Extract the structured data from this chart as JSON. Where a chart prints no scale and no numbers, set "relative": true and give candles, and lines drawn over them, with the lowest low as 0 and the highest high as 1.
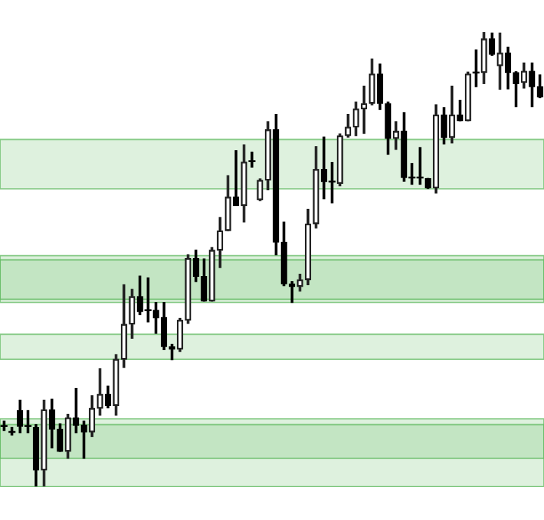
{
  "chart_data": {
    "type": "candlestick",
    "relative": true,
    "categories": [
      null,
      null,
      null,
      null,
      null,
      null,
      null,
      null,
      null,
      null,
      null,
      null,
      null,
      null,
      null,
      null,
      null,
      null,
      null,
      null,
      null,
      null,
      null,
      null,
      null,
      null,
      null,
      null,
      null,
      null,
      null,
      null,
      null,
      null,
      null,
      null,
      null,
      null,
      null,
      null,
      null,
      null,
      null,
      null,
      null,
      null,
      null,
      null,
      null,
      null,
      null,
      null,
      null,
      null,
      null,
      null,
      null,
      null,
      null,
      null,
      null,
      null,
      null,
      null,
      null,
      null,
      null,
      null
    ],
    "ohlc": [
      [
        0.133,
        0.144,
        0.123,
        0.133
      ],
      [
        0.12,
        0.13,
        0.113,
        0.12
      ],
      [
        0.167,
        0.19,
        0.118,
        0.132
      ],
      [
        0.133,
        0.167,
        0.118,
        0.133
      ],
      [
        0.13,
        0.136,
        0,
        0.036
      ],
      [
        0.036,
        0.19,
        0,
        0.169
      ],
      [
        0.169,
        0.192,
        0.085,
        0.126
      ],
      [
        0.126,
        0.138,
        0.077,
        0.077
      ],
      [
        0.077,
        0.159,
        0.062,
        0.151
      ],
      [
        0.151,
        0.216,
        0.118,
        0.135
      ],
      [
        0.135,
        0.144,
        0.062,
        0.12
      ],
      [
        0.12,
        0.2,
        0.11,
        0.172
      ],
      [
        0.172,
        0.259,
        0.157,
        0.203
      ],
      [
        0.203,
        0.221,
        0.173,
        0.178
      ],
      [
        0.178,
        0.29,
        0.157,
        0.28
      ],
      [
        0.28,
        0.444,
        0.262,
        0.357
      ],
      [
        0.357,
        0.434,
        0.326,
        0.418
      ],
      [
        0.418,
        0.463,
        0.378,
        0.385
      ],
      [
        0.388,
        0.459,
        0.362,
        0.388
      ],
      [
        0.388,
        0.405,
        0.337,
        0.371
      ],
      [
        0.372,
        0.405,
        0.301,
        0.308
      ],
      [
        0.308,
        0.313,
        0.279,
        0.302
      ],
      [
        0.302,
        0.37,
        0.297,
        0.366
      ],
      [
        0.366,
        0.51,
        0.359,
        0.502
      ],
      [
        0.502,
        0.52,
        0.451,
        0.462
      ],
      [
        0.462,
        0.501,
        0.408,
        0.408
      ],
      [
        0.408,
        0.526,
        0.408,
        0.52
      ],
      [
        0.52,
        0.592,
        0.482,
        0.563
      ],
      [
        0.563,
        0.684,
        0.563,
        0.637
      ],
      [
        0.637,
        0.739,
        0.618,
        0.618
      ],
      [
        0.618,
        0.752,
        0.582,
        0.714
      ],
      [
        0.716,
        0.736,
        0.703,
        0.716
      ],
      [
        0.631,
        0.677,
        0.629,
        0.674
      ],
      [
        0.674,
        0.803,
        0.653,
        0.785
      ],
      [
        0.785,
        0.819,
        0.51,
        0.538
      ],
      [
        0.538,
        0.582,
        0.442,
        0.446
      ],
      [
        0.446,
        0.451,
        0.405,
        0.44
      ],
      [
        0.44,
        0.467,
        0.43,
        0.455
      ],
      [
        0.455,
        0.61,
        0.444,
        0.578
      ],
      [
        0.578,
        0.748,
        0.569,
        0.698
      ],
      [
        0.698,
        0.769,
        0.633,
        0.671
      ],
      [
        0.671,
        0.713,
        0.624,
        0.671
      ],
      [
        0.667,
        0.776,
        0.662,
        0.772
      ],
      [
        0.772,
        0.819,
        0.769,
        0.791
      ],
      [
        0.791,
        0.846,
        0.772,
        0.831
      ],
      [
        0.831,
        0.881,
        0.777,
        0.843
      ],
      [
        0.843,
        0.941,
        0.84,
        0.908
      ],
      [
        0.908,
        0.93,
        0.83,
        0.843
      ],
      [
        0.843,
        0.846,
        0.731,
        0.766
      ],
      [
        0.766,
        0.803,
        0.742,
        0.782
      ],
      [
        0.782,
        0.823,
        0.672,
        0.68
      ],
      [
        0.68,
        0.711,
        0.665,
        0.68
      ],
      [
        0.68,
        0.746,
        0.665,
        0.68
      ],
      [
        0.678,
        0.678,
        0.656,
        0.657
      ],
      [
        0.657,
        0.84,
        0.646,
        0.818
      ],
      [
        0.818,
        0.834,
        0.754,
        0.768
      ],
      [
        0.768,
        0.881,
        0.756,
        0.818
      ],
      [
        0.818,
        0.85,
        0.805,
        0.805
      ],
      [
        0.805,
        0.912,
        0.805,
        0.908
      ],
      [
        0.911,
        0.961,
        0.88,
        0.911
      ],
      [
        0.911,
        1,
        0.887,
        0.985
      ],
      [
        0.985,
        0.998,
        0.949,
        0.951
      ],
      [
        0.926,
        0.998,
        0.874,
        0.954
      ],
      [
        0.954,
        0.967,
        0.875,
        0.911
      ],
      [
        0.911,
        0.913,
        0.836,
        0.887
      ],
      [
        0.889,
        0.932,
        0.877,
        0.914
      ],
      [
        0.914,
        0.932,
        0.836,
        0.88
      ],
      [
        0.88,
        0.906,
        0.856,
        0.857
      ]
    ],
    "bands": [
      {
        "axis": "y",
        "from": 0.655,
        "to": 0.764,
        "color": "#5cb85c"
      },
      {
        "axis": "y",
        "from": 0.412,
        "to": 0.499,
        "color": "#5cb85c"
      },
      {
        "axis": "y",
        "from": 0.405,
        "to": 0.508,
        "color": "#5cb85c"
      },
      {
        "axis": "y",
        "from": 0.28,
        "to": 0.335,
        "color": "#5cb85c"
      },
      {
        "axis": "y",
        "from": 0,
        "to": 0.136,
        "color": "#5cb85c"
      },
      {
        "axis": "y",
        "from": 0.062,
        "to": 0.149,
        "color": "#5cb85c"
      }
    ]
  }
}
